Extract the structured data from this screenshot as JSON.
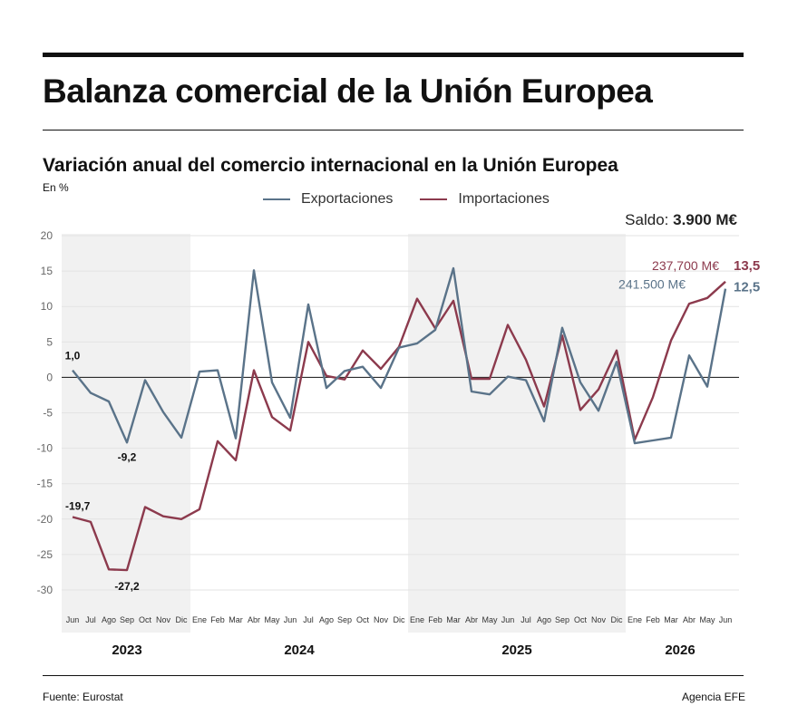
{
  "header": {
    "title": "Balanza comercial de la Unión Europea",
    "subtitle": "Variación anual del comercio internacional en la Unión Europea",
    "unit": "En %"
  },
  "saldo": {
    "label": "Saldo:",
    "value": "3.900 M€"
  },
  "footer": {
    "source": "Fuente: Eurostat",
    "credit": "Agencia EFE"
  },
  "colors": {
    "exports": "#5a7389",
    "imports": "#8c3a4d",
    "shade": "#f1f1f1",
    "grid": "#e3e3e3",
    "zero": "#111111"
  },
  "chart_data": {
    "type": "line",
    "ylim": [
      -35,
      20
    ],
    "yticks": [
      20,
      15,
      10,
      5,
      0,
      -5,
      -10,
      -15,
      -20,
      -25,
      -30
    ],
    "x": [
      "Jun",
      "Jul",
      "Ago",
      "Sep",
      "Oct",
      "Nov",
      "Dic",
      "Ene",
      "Feb",
      "Mar",
      "Abr",
      "May",
      "Jun",
      "Jul",
      "Ago",
      "Sep",
      "Oct",
      "Nov",
      "Dic",
      "Ene",
      "Feb",
      "Mar",
      "Abr",
      "May",
      "Jun",
      "Jul",
      "Ago",
      "Sep",
      "Oct",
      "Nov",
      "Dic",
      "Ene",
      "Feb",
      "Mar",
      "Abr",
      "May",
      "Jun"
    ],
    "years": [
      {
        "label": "2023",
        "start": 0,
        "end": 6,
        "shaded": true
      },
      {
        "label": "2024",
        "start": 7,
        "end": 18,
        "shaded": false
      },
      {
        "label": "2025",
        "start": 19,
        "end": 30,
        "shaded": true
      },
      {
        "label": "2026",
        "start": 31,
        "end": 36,
        "shaded": false
      }
    ],
    "series": [
      {
        "name": "Exportaciones",
        "color": "#5a7389",
        "values": [
          1.0,
          -2.2,
          -3.4,
          -9.2,
          -0.4,
          -4.9,
          -8.5,
          0.8,
          1.0,
          -8.6,
          15.1,
          -0.7,
          -5.7,
          10.3,
          -1.5,
          0.9,
          1.5,
          -1.5,
          4.2,
          4.8,
          6.7,
          15.4,
          -2.0,
          -2.4,
          0.1,
          -0.4,
          -6.2,
          7.0,
          -0.7,
          -4.7,
          2.2,
          -9.3,
          -8.9,
          -8.5,
          3.1,
          -1.3,
          12.5
        ]
      },
      {
        "name": "Importaciones",
        "color": "#8c3a4d",
        "values": [
          -19.7,
          -20.4,
          -27.1,
          -27.2,
          -18.3,
          -19.6,
          -20.0,
          -18.6,
          -9.0,
          -11.7,
          1.0,
          -5.6,
          -7.5,
          5.0,
          0.2,
          -0.3,
          3.8,
          1.2,
          4.3,
          11.1,
          6.9,
          10.8,
          -0.2,
          -0.2,
          7.4,
          2.5,
          -4.1,
          5.9,
          -4.6,
          -1.7,
          3.8,
          -8.8,
          -2.8,
          5.2,
          10.4,
          11.2,
          13.5
        ]
      }
    ],
    "annotations": [
      {
        "text": "1,0",
        "series": 0,
        "index": 0,
        "color": "#111111"
      },
      {
        "text": "-9,2",
        "series": 0,
        "index": 3,
        "color": "#111111"
      },
      {
        "text": "-19,7",
        "series": 1,
        "index": 0,
        "color": "#111111"
      },
      {
        "text": "-27,2",
        "series": 1,
        "index": 3,
        "color": "#111111"
      },
      {
        "text": "237,700 M€",
        "series": 1,
        "index": 36,
        "color": "#8c3a4d"
      },
      {
        "text": "13,5",
        "series": 1,
        "index": 36,
        "color": "#8c3a4d"
      },
      {
        "text": "241.500 M€",
        "series": 0,
        "index": 36,
        "color": "#5a7389"
      },
      {
        "text": "12,5",
        "series": 0,
        "index": 36,
        "color": "#5a7389"
      }
    ]
  }
}
